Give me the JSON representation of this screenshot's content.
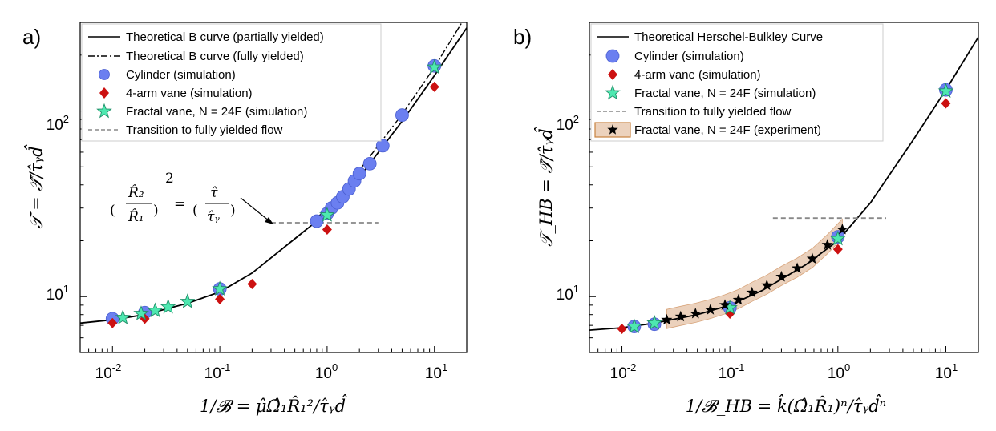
{
  "chart_data": [
    {
      "type": "scatter",
      "panel_label": "a)",
      "xlabel": "1/𝓑 = μ̂Ω̂₁R̂₁²/τ̂ᵧd̂",
      "ylabel": "𝒯 = 𝒯̂/τ̂ᵧd̂",
      "xscale": "log",
      "yscale": "log",
      "xlim": [
        0.005,
        20
      ],
      "ylim": [
        5,
        300
      ],
      "x_ticks": [
        "10",
        "10",
        "10",
        "10"
      ],
      "x_tick_exps": [
        "-2",
        "-1",
        "0",
        "1"
      ],
      "x_tick_values": [
        0.01,
        0.1,
        1,
        10
      ],
      "y_ticks": [
        "10",
        "10"
      ],
      "y_tick_exps": [
        "1",
        "2"
      ],
      "y_tick_values": [
        10,
        100
      ],
      "legend_position": "top-right",
      "legend": [
        "Theoretical B curve (partially yielded)",
        "Theoretical B curve (fully yielded)",
        "Cylinder (simulation)",
        "4-arm vane  (simulation)",
        "Fractal vane, N = 24F  (simulation)",
        "Transition to fully yielded flow"
      ],
      "annotation": {
        "r2": "R̂₂",
        "r1": "R̂₁",
        "tau": "τ̂",
        "tauy": "τ̂ᵧ",
        "exp": "2",
        "eq": "="
      },
      "series": [
        {
          "name": "Theoretical B curve (partially yielded)",
          "style": "solid-line",
          "color": "#000000",
          "x": [
            0.005,
            0.01,
            0.02,
            0.05,
            0.1,
            0.2,
            0.5,
            0.8,
            1,
            2,
            5,
            10,
            20
          ],
          "y": [
            7.2,
            7.5,
            8.0,
            9.2,
            10.6,
            13.4,
            20.5,
            25.5,
            28.5,
            44,
            88,
            155,
            280
          ]
        },
        {
          "name": "Theoretical B curve (fully yielded)",
          "style": "dashdot-line",
          "color": "#000000",
          "x": [
            0.8,
            1,
            2,
            5,
            10,
            20
          ],
          "y": [
            26.5,
            30,
            48,
            96,
            172,
            330
          ]
        },
        {
          "name": "Cylinder (simulation)",
          "marker": "circle",
          "color": "#6b7ff0",
          "x": [
            0.01,
            0.02,
            0.1,
            0.8,
            1.0,
            1.1,
            1.25,
            1.4,
            1.6,
            1.8,
            2.0,
            2.5,
            3.3,
            5,
            10
          ],
          "y": [
            7.6,
            8.2,
            11,
            25.5,
            28,
            30,
            32,
            34.5,
            38,
            42,
            46,
            52,
            65,
            95,
            175
          ]
        },
        {
          "name": "4-arm vane  (simulation)",
          "marker": "diamond",
          "color": "#cc1111",
          "x": [
            0.01,
            0.02,
            0.1,
            0.2,
            1.0,
            10
          ],
          "y": [
            7.2,
            7.6,
            9.7,
            11.7,
            23,
            135
          ]
        },
        {
          "name": "Fractal vane, N = 24F  (simulation)",
          "marker": "star",
          "color": "#4ee8b0",
          "x": [
            0.0125,
            0.0185,
            0.025,
            0.033,
            0.05,
            0.1,
            1.0,
            10
          ],
          "y": [
            7.7,
            8.1,
            8.4,
            8.8,
            9.4,
            11,
            27.5,
            172
          ]
        },
        {
          "name": "Transition to fully yielded flow",
          "style": "dashed-line",
          "color": "#888888",
          "x": [
            0.3,
            3.0
          ],
          "y": [
            25,
            25
          ]
        }
      ]
    },
    {
      "type": "scatter",
      "panel_label": "b)",
      "xlabel": "1/𝓑_HB = k̂(Ω̂₁R̂₁)ⁿ/τ̂ᵧd̂ⁿ",
      "ylabel": "𝒯_HB = 𝒯̂/τ̂ᵧd̂",
      "xscale": "log",
      "yscale": "log",
      "xlim": [
        0.005,
        20
      ],
      "ylim": [
        5,
        300
      ],
      "x_ticks": [
        "10",
        "10",
        "10",
        "10"
      ],
      "x_tick_exps": [
        "-2",
        "-1",
        "0",
        "1"
      ],
      "x_tick_values": [
        0.01,
        0.1,
        1,
        10
      ],
      "y_ticks": [
        "10",
        "10"
      ],
      "y_tick_exps": [
        "1",
        "2"
      ],
      "y_tick_values": [
        10,
        100
      ],
      "legend_position": "top-right",
      "legend": [
        "Theoretical Herschel-Bulkley Curve",
        "Cylinder (simulation)",
        "4-arm vane  (simulation)",
        "Fractal vane, N = 24F  (simulation)",
        "Transition to fully yielded flow",
        "Fractal vane, N = 24F  (experiment)"
      ],
      "series": [
        {
          "name": "Theoretical Herschel-Bulkley Curve",
          "style": "solid-line",
          "color": "#000000",
          "x": [
            0.005,
            0.01,
            0.02,
            0.05,
            0.1,
            0.2,
            0.5,
            1,
            2,
            5,
            10,
            20
          ],
          "y": [
            6.6,
            6.8,
            7.2,
            8.0,
            9.0,
            10.8,
            14.8,
            20,
            32,
            70,
            130,
            250
          ]
        },
        {
          "name": "Cylinder (simulation)",
          "marker": "circle",
          "color": "#6b7ff0",
          "x": [
            0.013,
            0.02,
            0.1,
            1.0,
            10
          ],
          "y": [
            6.9,
            7.1,
            8.7,
            21,
            130
          ]
        },
        {
          "name": "4-arm vane  (simulation)",
          "marker": "diamond",
          "color": "#cc1111",
          "x": [
            0.01,
            0.1,
            1.0,
            10
          ],
          "y": [
            6.7,
            8.1,
            18,
            110
          ]
        },
        {
          "name": "Fractal vane, N = 24F  (simulation)",
          "marker": "star",
          "color": "#4ee8b0",
          "x": [
            0.013,
            0.02,
            0.1,
            1.0,
            10
          ],
          "y": [
            6.9,
            7.2,
            8.7,
            20.5,
            128
          ]
        },
        {
          "name": "Transition to fully yielded flow",
          "style": "dashed-line",
          "color": "#888888",
          "x": [
            0.25,
            2.8
          ],
          "y": [
            26.5,
            26.5
          ]
        },
        {
          "name": "Fractal vane, N = 24F  (experiment)",
          "marker": "black-star",
          "color": "#000000",
          "band_color": "#e8c9b0",
          "x": [
            0.026,
            0.035,
            0.048,
            0.066,
            0.09,
            0.12,
            0.16,
            0.22,
            0.3,
            0.42,
            0.58,
            0.8,
            1.1
          ],
          "y": [
            7.5,
            7.8,
            8.1,
            8.5,
            9.0,
            9.6,
            10.5,
            11.5,
            12.8,
            14.2,
            16.0,
            19.0,
            23.0
          ]
        }
      ]
    }
  ]
}
